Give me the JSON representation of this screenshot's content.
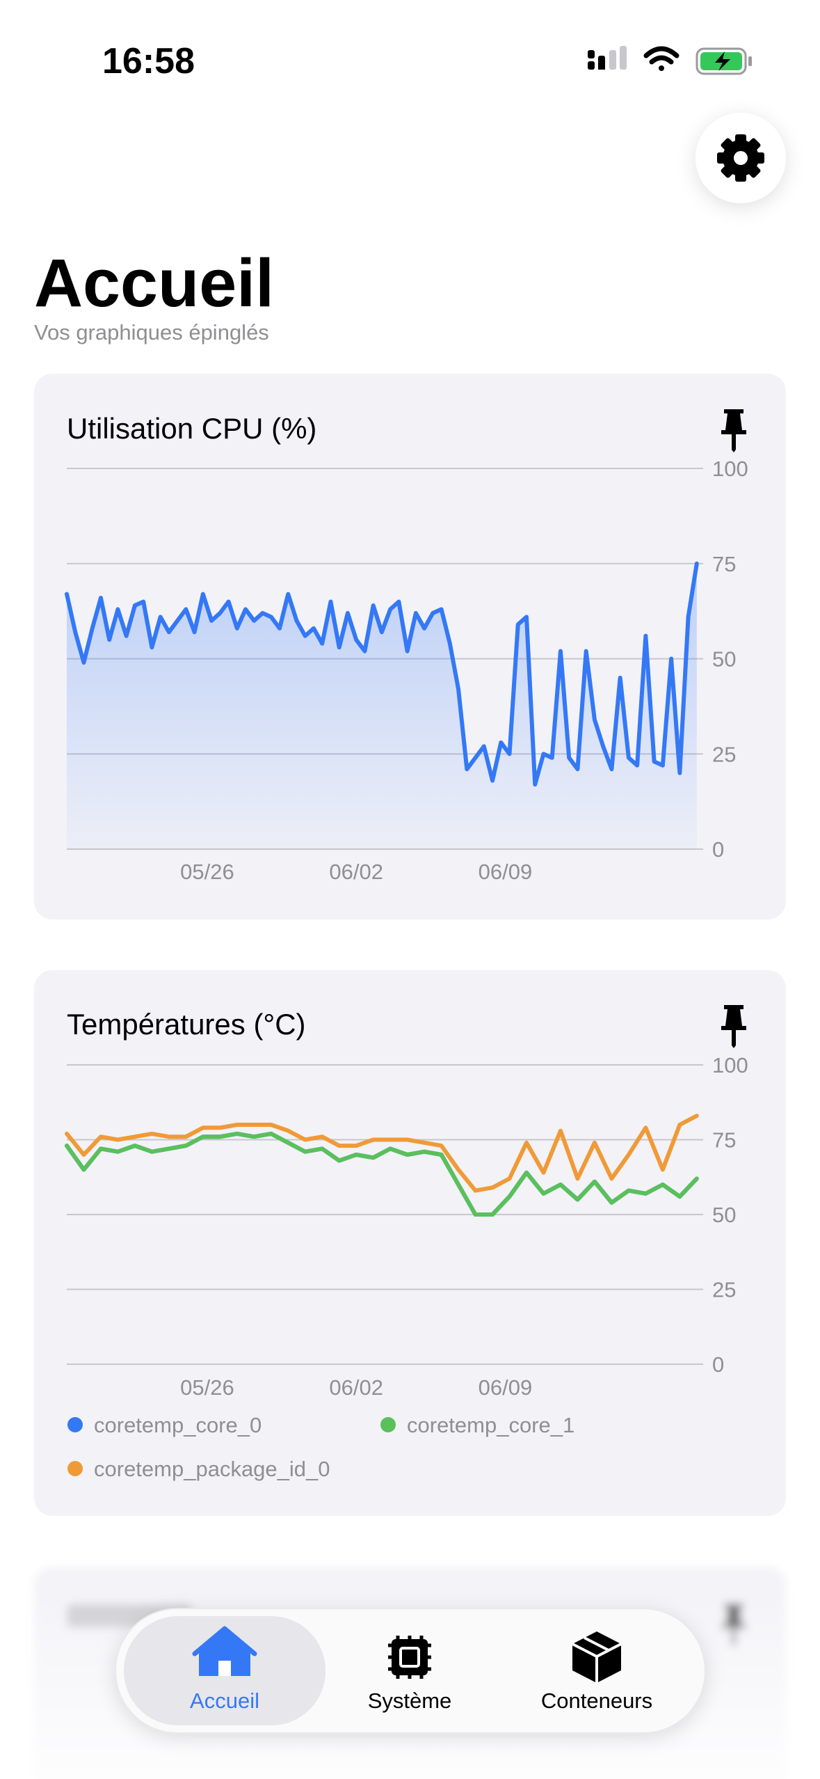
{
  "status_bar": {
    "time": "16:58"
  },
  "header": {
    "title": "Accueil",
    "subtitle": "Vos graphiques épinglés"
  },
  "chart_data": [
    {
      "type": "line",
      "title": "Utilisation CPU (%)",
      "color": "#3478f6",
      "area": true,
      "grid": true,
      "x": [
        139.4,
        139.8,
        140.2,
        140.6,
        141.0,
        141.4,
        141.8,
        142.2,
        142.6,
        143.0,
        143.4,
        143.8,
        144.2,
        144.6,
        145.0,
        145.4,
        145.8,
        146.2,
        146.6,
        147.0,
        147.4,
        147.8,
        148.2,
        148.6,
        149.0,
        149.4,
        149.8,
        150.2,
        150.6,
        151.0,
        151.4,
        151.8,
        152.2,
        152.6,
        153.0,
        153.4,
        153.8,
        154.2,
        154.6,
        155.0,
        155.4,
        155.8,
        156.2,
        156.6,
        157.0,
        157.4,
        157.8,
        158.2,
        158.6,
        159.0,
        159.4,
        159.8,
        160.2,
        160.6,
        161.0,
        161.4,
        161.8,
        162.2,
        162.6,
        163.0,
        163.4,
        163.8,
        164.2,
        164.6,
        165.0,
        165.4,
        165.8,
        166.2,
        166.6,
        167.0,
        167.4,
        167.8,
        168.2,
        168.6,
        169.0
      ],
      "values": [
        67,
        57,
        49,
        58,
        66,
        55,
        63,
        56,
        64,
        65,
        53,
        61,
        57,
        60,
        63,
        57,
        67,
        60,
        62,
        65,
        58,
        63,
        60,
        62,
        61,
        58,
        67,
        60,
        56,
        58,
        54,
        65,
        53,
        62,
        55,
        52,
        64,
        57,
        63,
        65,
        52,
        62,
        58,
        62,
        63,
        54,
        42,
        21,
        24,
        27,
        18,
        28,
        25,
        59,
        61,
        17,
        25,
        24,
        52,
        24,
        21,
        52,
        34,
        27,
        21,
        45,
        24,
        22,
        56,
        23,
        22,
        50,
        20,
        61,
        75
      ],
      "xlim": [
        139.4,
        169.3
      ],
      "xticks": [
        {
          "value": 146,
          "label": "05/26"
        },
        {
          "value": 153,
          "label": "06/02"
        },
        {
          "value": 160,
          "label": "06/09"
        }
      ],
      "ylim": [
        0,
        100
      ],
      "yticks": [
        0,
        25,
        50,
        75,
        100
      ]
    },
    {
      "type": "line",
      "title": "Températures (°C)",
      "grid": true,
      "x": [
        139.4,
        140.2,
        141.0,
        141.8,
        142.6,
        143.4,
        144.2,
        145.0,
        145.8,
        146.6,
        147.4,
        148.2,
        149.0,
        149.8,
        150.6,
        151.4,
        152.2,
        153.0,
        153.8,
        154.6,
        155.4,
        156.2,
        157.0,
        157.8,
        158.6,
        159.4,
        160.2,
        161.0,
        161.8,
        162.6,
        163.4,
        164.2,
        165.0,
        165.8,
        166.6,
        167.4,
        168.2,
        169.0
      ],
      "series": [
        {
          "name": "coretemp_core_0",
          "color": "#3478f6",
          "values": [
            73,
            65,
            72,
            71,
            73,
            71,
            72,
            73,
            76,
            76,
            77,
            76,
            77,
            74,
            71,
            72,
            68,
            70,
            69,
            72,
            70,
            71,
            70,
            60,
            50,
            50,
            56,
            64,
            57,
            60,
            55,
            61,
            54,
            58,
            57,
            60,
            56,
            62
          ]
        },
        {
          "name": "coretemp_core_1",
          "color": "#5ac05a",
          "values": [
            73,
            65,
            72,
            71,
            73,
            71,
            72,
            73,
            76,
            76,
            77,
            76,
            77,
            74,
            71,
            72,
            68,
            70,
            69,
            72,
            70,
            71,
            70,
            60,
            50,
            50,
            56,
            64,
            57,
            60,
            55,
            61,
            54,
            58,
            57,
            60,
            56,
            62
          ]
        },
        {
          "name": "coretemp_package_id_0",
          "color": "#f09a37",
          "values": [
            77,
            70,
            76,
            75,
            76,
            77,
            76,
            76,
            79,
            79,
            80,
            80,
            80,
            78,
            75,
            76,
            73,
            73,
            75,
            75,
            75,
            74,
            73,
            65,
            58,
            59,
            62,
            74,
            64,
            78,
            62,
            74,
            62,
            70,
            79,
            65,
            80,
            83
          ]
        }
      ],
      "xlim": [
        139.4,
        169.3
      ],
      "xticks": [
        {
          "value": 146,
          "label": "05/26"
        },
        {
          "value": 153,
          "label": "06/02"
        },
        {
          "value": 160,
          "label": "06/09"
        }
      ],
      "ylim": [
        0,
        100
      ],
      "yticks": [
        0,
        25,
        50,
        75,
        100
      ]
    }
  ],
  "tab_bar": {
    "tabs": [
      {
        "label": "Accueil",
        "selected": true
      },
      {
        "label": "Système",
        "selected": false
      },
      {
        "label": "Conteneurs",
        "selected": false
      }
    ]
  }
}
